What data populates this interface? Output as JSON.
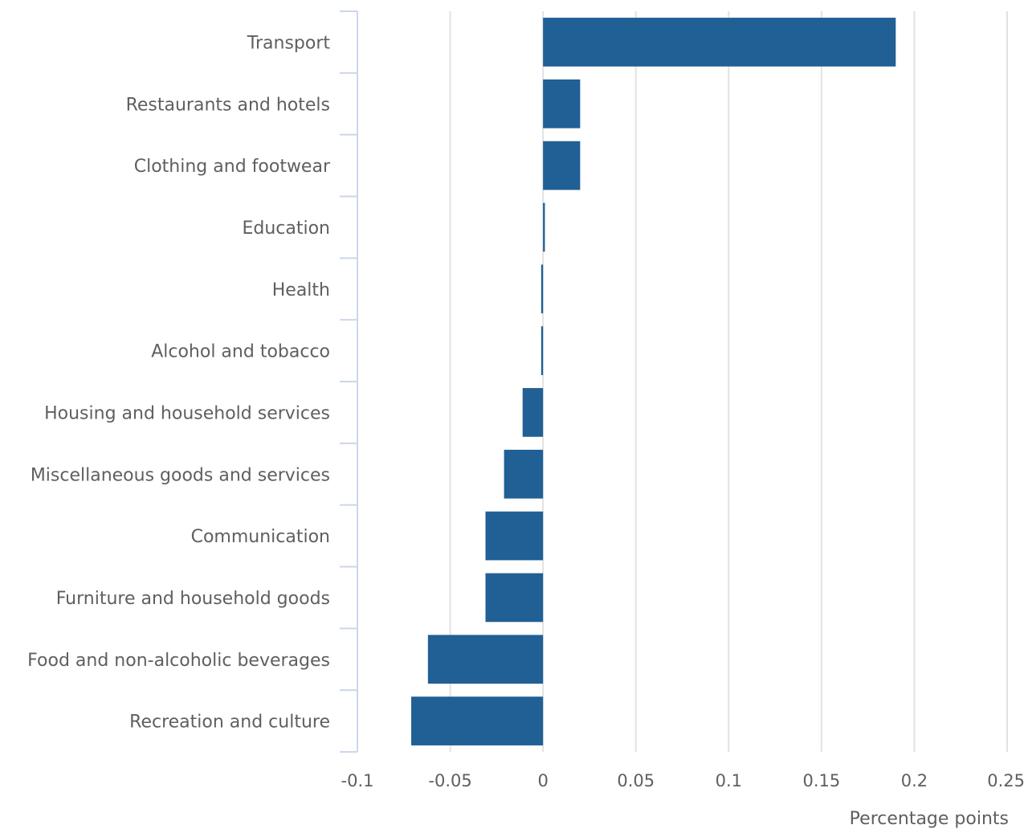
{
  "chart_data": {
    "type": "bar",
    "orientation": "horizontal",
    "title": "",
    "xlabel": "Percentage points",
    "ylabel": "",
    "xlim": [
      -0.1,
      0.25
    ],
    "x_ticks": [
      "-0.1",
      "-0.05",
      "0",
      "0.05",
      "0.1",
      "0.15",
      "0.2",
      "0.25"
    ],
    "x_tick_values": [
      -0.1,
      -0.05,
      0,
      0.05,
      0.1,
      0.15,
      0.2,
      0.25
    ],
    "grid": true,
    "categories": [
      "Transport",
      "Restaurants and hotels",
      "Clothing and footwear",
      "Education",
      "Health",
      "Alcohol and tobacco",
      "Housing and household services",
      "Miscellaneous goods and services",
      "Communication",
      "Furniture and household goods",
      "Food and non-alcoholic beverages",
      "Recreation and culture"
    ],
    "values": [
      0.19,
      0.02,
      0.02,
      0.001,
      -0.001,
      -0.001,
      -0.011,
      -0.021,
      -0.031,
      -0.031,
      -0.062,
      -0.071
    ],
    "colors": {
      "bar": "#206095",
      "grid": "#e2e2e2",
      "axis": "#ccd6eb",
      "text": "#5f5f5f"
    }
  }
}
